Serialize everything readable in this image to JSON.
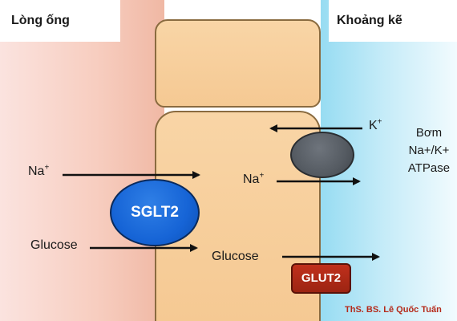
{
  "regions": {
    "lumen": "Lòng ống",
    "interstitial": "Khoảng kẽ"
  },
  "ions": {
    "na": "Na",
    "na_charge": "+",
    "k": "K",
    "k_charge": "+"
  },
  "substrates": {
    "glucose": "Glucose"
  },
  "transporters": {
    "sglt2": "SGLT2",
    "glut2": "GLUT2",
    "pump": {
      "line1": "Bơm",
      "line2": "Na+/K+",
      "line3": "ATPase"
    }
  },
  "credit": "ThS. BS. Lê Quốc Tuấn",
  "colors": {
    "lumen": "#f7cdbf",
    "interstitial": "#97dcf2",
    "cell": "#f7cf9d",
    "sglt2": "#1664d6",
    "pump": "#555b62",
    "glut2": "#b02a16",
    "credit": "#b52a1a"
  }
}
